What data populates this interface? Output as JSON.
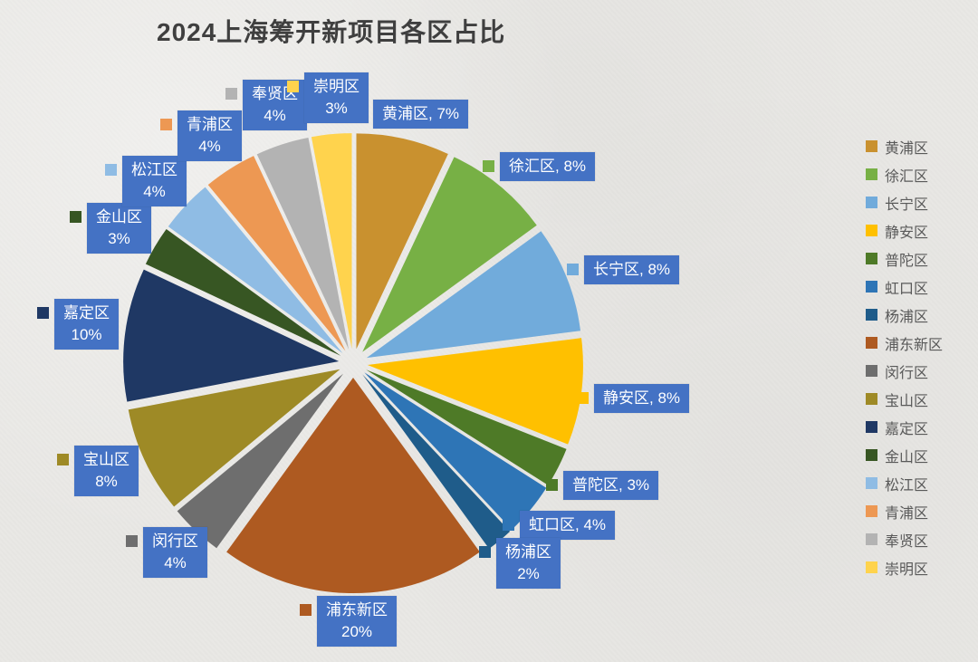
{
  "chart_data": {
    "type": "pie",
    "title": "2024上海筹开新项目各区占比",
    "unit": "%",
    "total": 100,
    "direction": "clockwise",
    "start_angle_deg": 0,
    "exploded": true,
    "legend_position": "right",
    "categories": [
      "黄浦区",
      "徐汇区",
      "长宁区",
      "静安区",
      "普陀区",
      "虹口区",
      "杨浦区",
      "浦东新区",
      "闵行区",
      "宝山区",
      "嘉定区",
      "金山区",
      "松江区",
      "青浦区",
      "奉贤区",
      "崇明区"
    ],
    "values": [
      7,
      8,
      8,
      8,
      3,
      4,
      2,
      20,
      4,
      8,
      10,
      3,
      4,
      4,
      4,
      3
    ],
    "slice_colors": [
      "#C9912F",
      "#77B045",
      "#71ABDB",
      "#FFC000",
      "#4E7A27",
      "#2E75B6",
      "#1F5C8A",
      "#AE5A21",
      "#6E6E6E",
      "#9E8A26",
      "#1F3864",
      "#375623",
      "#8FBCE4",
      "#ED9853",
      "#B3B3B3",
      "#FFD34D"
    ],
    "data_labels": [
      "黄浦区, 7%",
      "徐汇区, 8%",
      "长宁区, 8%",
      "静安区, 8%",
      "普陀区, 3%",
      "虹口区, 4%",
      "杨浦区 2%",
      "浦东新区 20%",
      "闵行区 4%",
      "宝山区 8%",
      "嘉定区 10%",
      "金山区 3%",
      "松江区 4%",
      "青浦区 4%",
      "奉贤区 4%",
      "崇明区 3%"
    ]
  },
  "style": {
    "background": "#E9E8E5",
    "label_box_color": "#4472C4",
    "label_text_color": "#FFFFFF",
    "title_color": "#3F3F3F",
    "legend_text_color": "#595959"
  }
}
